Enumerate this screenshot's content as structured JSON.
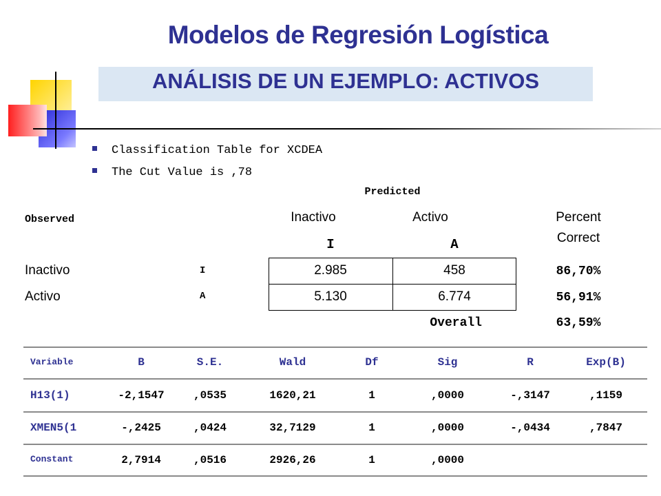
{
  "title": "Modelos de Regresión Logística",
  "subtitle": "ANÁLISIS DE UN EJEMPLO: ACTIVOS",
  "bullets": [
    "Classification Table for XCDEA",
    "The Cut Value is ,78"
  ],
  "classification_table": {
    "predicted_label": "Predicted",
    "observed_label": "Observed",
    "col_inactivo": "Inactivo",
    "col_activo": "Activo",
    "col_percent": "Percent",
    "col_correct": "Correct",
    "col_code_i": "I",
    "col_code_a": "A",
    "rows": [
      {
        "label": "Inactivo",
        "code": "I",
        "inactivo": "2.985",
        "activo": "458",
        "percent": "86,70%"
      },
      {
        "label": "Activo",
        "code": "A",
        "inactivo": "5.130",
        "activo": "6.774",
        "percent": "56,91%"
      }
    ],
    "overall_label": "Overall",
    "overall_percent": "63,59%"
  },
  "coefficients_table": {
    "headers": [
      "Variable",
      "B",
      "S.E.",
      "Wald",
      "Df",
      "Sig",
      "R",
      "Exp(B)"
    ],
    "rows": [
      [
        "H13(1)",
        "-2,1547",
        ",0535",
        "1620,21",
        "1",
        ",0000",
        "-,3147",
        ",1159"
      ],
      [
        "XMEN5(1",
        "-,2425",
        ",0424",
        "32,7129",
        "1",
        ",0000",
        "-,0434",
        ",7847"
      ],
      [
        "Constant",
        "2,7914",
        ",0516",
        "2926,26",
        "1",
        ",0000",
        "",
        ""
      ]
    ]
  },
  "colors": {
    "title": "#2e3192",
    "subtitle_bg": "#dbe7f3",
    "bullet": "#2e3192",
    "variable_names": "#2e3192"
  },
  "icons": [
    "square-bullet-icon"
  ]
}
